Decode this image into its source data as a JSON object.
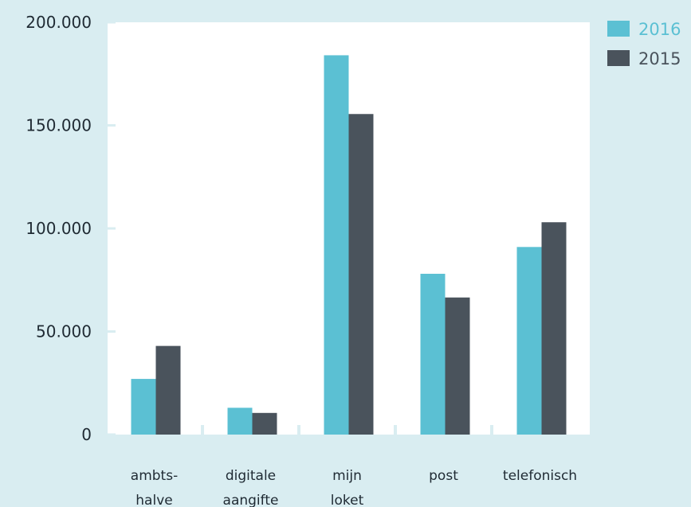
{
  "chart_data": {
    "type": "bar",
    "categories": [
      [
        "ambts-",
        "halve"
      ],
      [
        "digitale",
        "aangifte"
      ],
      [
        "mijn",
        "loket"
      ],
      [
        "post"
      ],
      [
        "telefonisch"
      ]
    ],
    "series": [
      {
        "name": "2016",
        "color": "#5bc0d3",
        "values": [
          27000,
          13000,
          184000,
          78000,
          91000
        ]
      },
      {
        "name": "2015",
        "color": "#4a535c",
        "values": [
          43000,
          10500,
          155500,
          66500,
          103000
        ]
      }
    ],
    "y_ticks": [
      "0",
      "50.000",
      "100.000",
      "150.000",
      "200.000"
    ],
    "ylim": [
      0,
      200000
    ],
    "legend_position": "top-right",
    "grid": false
  }
}
